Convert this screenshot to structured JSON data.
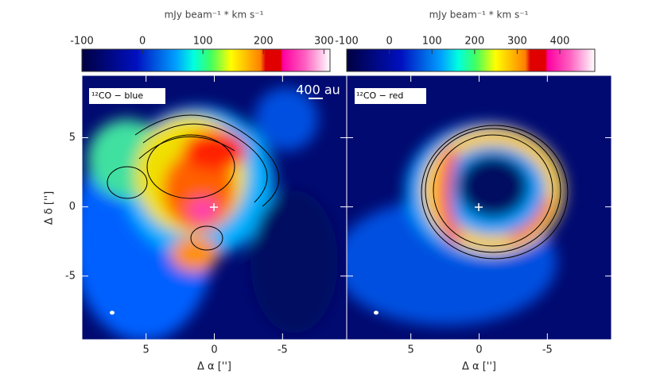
{
  "chart_data": [
    {
      "type": "image",
      "panel_label": "¹²CO − blue",
      "scale_label": "400 au",
      "colorbar_label": "mJy beam⁻¹ * km s⁻¹",
      "clim": [
        -100,
        310
      ],
      "cticks": [
        -100,
        0,
        100,
        200,
        300
      ],
      "xlabel": "Δ α ['']",
      "ylabel": "Δ δ ['']",
      "xlim": [
        9.7,
        -9.7
      ],
      "ylim": [
        -9.6,
        9.5
      ],
      "xticks": [
        5,
        0,
        -5
      ],
      "yticks": [
        -5,
        0,
        5
      ]
    },
    {
      "type": "image",
      "panel_label": "¹²CO − red",
      "colorbar_label": "mJy beam⁻¹ * km s⁻¹",
      "clim": [
        -100,
        482
      ],
      "cticks": [
        -100,
        0,
        100,
        200,
        300,
        400
      ],
      "xlabel": "Δ α ['']",
      "xlim": [
        9.7,
        -9.7
      ],
      "ylim": [
        -9.6,
        9.5
      ],
      "xticks": [
        5,
        0,
        -5
      ],
      "yticks": [
        -5,
        0,
        5
      ]
    }
  ]
}
